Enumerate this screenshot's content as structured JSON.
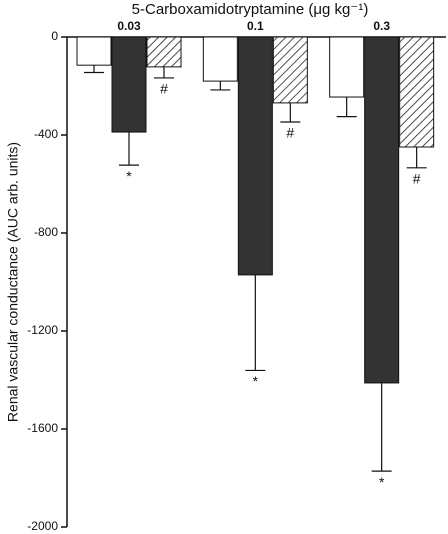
{
  "chart_data": {
    "type": "bar",
    "title": "5-Carboxamidotryptamine (μg kg⁻¹)",
    "y_label": "Renal vascular conductance (AUC arb. units)",
    "categories": [
      "0.03",
      "0.1",
      "0.3"
    ],
    "series": [
      {
        "color": "#ffffff",
        "hatch": false,
        "values": [
          -115,
          -180,
          -245
        ],
        "errors": [
          30,
          36,
          80
        ]
      },
      {
        "color": "#333333",
        "hatch": false,
        "values": [
          -388,
          -971,
          -1412
        ],
        "errors": [
          135,
          390,
          360
        ],
        "labels": [
          "*",
          "*",
          "*"
        ]
      },
      {
        "color": "#ffffff",
        "hatch": true,
        "values": [
          -122,
          -269,
          -449
        ],
        "errors": [
          45,
          78,
          85
        ],
        "labels": [
          "#",
          "#",
          "#"
        ]
      }
    ],
    "ylim": [
      -2000,
      0
    ],
    "yticks": [
      0,
      -400,
      -800,
      -1200,
      -1600,
      -2000
    ]
  }
}
